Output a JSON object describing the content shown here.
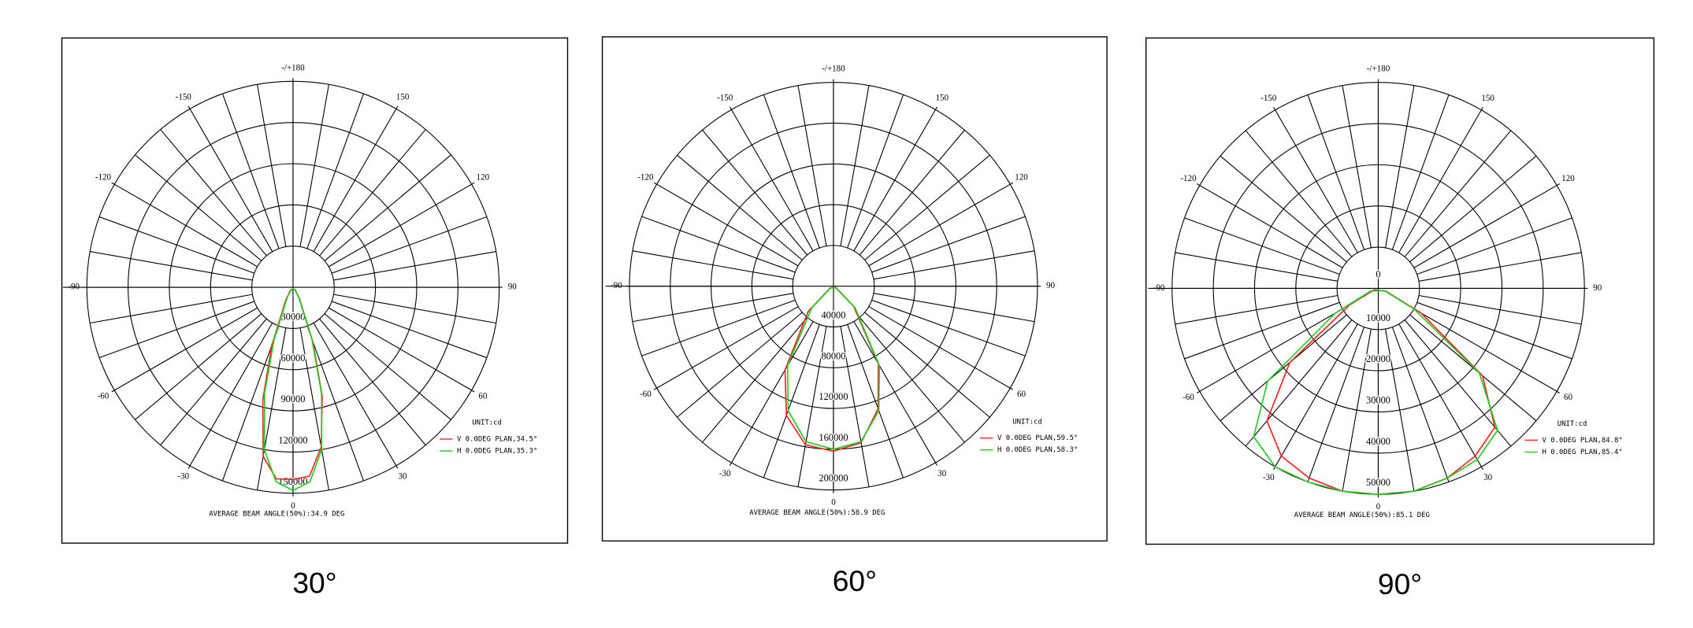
{
  "chart_data": [
    {
      "type": "polar",
      "title": "30°",
      "annotation": "AVERAGE BEAM ANGLE(50%):34.9 DEG",
      "legend_title": "UNIT:cd",
      "rlim": [
        0,
        150000
      ],
      "rticks": [
        30000,
        60000,
        90000,
        120000,
        150000
      ],
      "thetaticks": [
        {
          "value": 180,
          "label": "-/+180"
        },
        150,
        120,
        90,
        60,
        30,
        0,
        -30,
        -60,
        -90,
        -120,
        -150
      ],
      "series": [
        {
          "name": "V 0.0DEG PLAN,34.5°",
          "color": "#ff2020",
          "theta": [
            -40,
            -30,
            -20,
            -15,
            -10,
            -5,
            0,
            5,
            10,
            15,
            20,
            30,
            40
          ],
          "values": [
            3000,
            10000,
            45000,
            85000,
            125000,
            140000,
            140000,
            138000,
            118000,
            82000,
            42000,
            9000,
            2000
          ]
        },
        {
          "name": "H 0.0DEG PLAN,35.3°",
          "color": "#22cc22",
          "theta": [
            -40,
            -30,
            -20,
            -15,
            -10,
            -5,
            0,
            5,
            10,
            15,
            20,
            30,
            40
          ],
          "values": [
            2000,
            8000,
            40000,
            80000,
            120000,
            142000,
            148000,
            142000,
            120000,
            80000,
            40000,
            8000,
            2000
          ]
        }
      ]
    },
    {
      "type": "polar",
      "title": "60°",
      "annotation": "AVERAGE BEAM ANGLE(50%):58.9 DEG",
      "legend_title": "UNIT:cd",
      "rlim": [
        0,
        200000
      ],
      "rticks": [
        40000,
        80000,
        120000,
        160000,
        200000
      ],
      "thetaticks": [
        {
          "value": 180,
          "label": "-/+180"
        },
        150,
        120,
        90,
        60,
        30,
        0,
        -30,
        -60,
        -90,
        -120,
        -150
      ],
      "series": [
        {
          "name": "V 0.0DEG PLAN,59.5°",
          "color": "#ff2020",
          "theta": [
            -60,
            -45,
            -30,
            -20,
            -10,
            0,
            10,
            20,
            30,
            45,
            60
          ],
          "values": [
            4000,
            35000,
            95000,
            135000,
            158000,
            162000,
            156000,
            128000,
            88000,
            28000,
            2000
          ]
        },
        {
          "name": "H 0.0DEG PLAN,58.3°",
          "color": "#22cc22",
          "theta": [
            -60,
            -45,
            -30,
            -20,
            -10,
            0,
            10,
            20,
            30,
            45,
            60
          ],
          "values": [
            3000,
            30000,
            90000,
            130000,
            155000,
            160000,
            155000,
            130000,
            90000,
            30000,
            3000
          ]
        }
      ]
    },
    {
      "type": "polar",
      "title": "90°",
      "annotation": "AVERAGE BEAM ANGLE(50%):85.1 DEG",
      "legend_title": "UNIT:cd",
      "rlim": [
        0,
        50000
      ],
      "rticks": [
        0,
        10000,
        20000,
        30000,
        40000,
        50000
      ],
      "thetaticks": [
        {
          "value": 180,
          "label": "-/+180"
        },
        150,
        120,
        90,
        60,
        30,
        0,
        -30,
        -60,
        -90,
        -120,
        -150
      ],
      "series": [
        {
          "name": "V 0.0DEG PLAN,84.8°",
          "color": "#ff2020",
          "theta": [
            -70,
            -60,
            -50,
            -40,
            -30,
            -20,
            -10,
            0,
            10,
            20,
            30,
            40,
            50,
            60,
            70
          ],
          "values": [
            1000,
            8000,
            28000,
            42000,
            47000,
            49000,
            50000,
            50000,
            50000,
            49000,
            47000,
            44000,
            33000,
            12000,
            2000
          ]
        },
        {
          "name": "H 0.0DEG PLAN,85.4°",
          "color": "#22cc22",
          "theta": [
            -70,
            -60,
            -50,
            -40,
            -30,
            -20,
            -10,
            0,
            10,
            20,
            30,
            40,
            50,
            60,
            70
          ],
          "values": [
            2000,
            12000,
            35000,
            47000,
            50000,
            50000,
            50000,
            50000,
            50000,
            49000,
            48000,
            45000,
            32000,
            10000,
            1500
          ]
        }
      ]
    }
  ]
}
